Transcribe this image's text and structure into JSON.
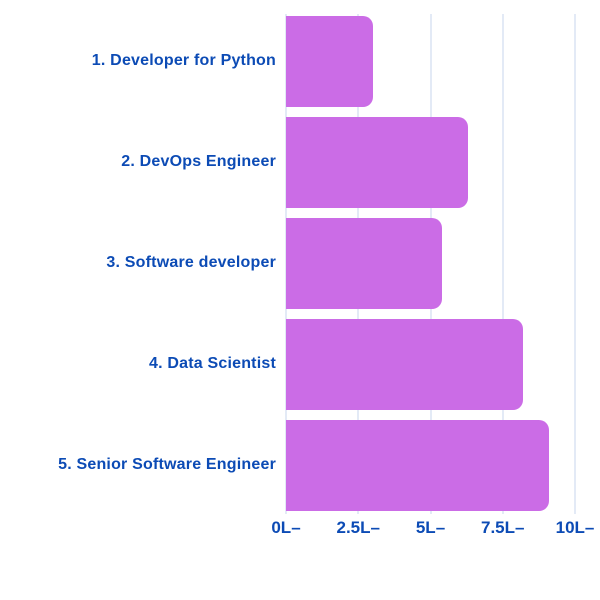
{
  "chart_data": {
    "type": "bar",
    "orientation": "horizontal",
    "categories": [
      "1. Developer for Python",
      "2. DevOps Engineer",
      "3. Software developer",
      "4. Data Scientist",
      "5. Senior Software Engineer"
    ],
    "values": [
      3.0,
      6.3,
      5.4,
      8.2,
      9.1
    ],
    "value_suffix": "L",
    "x_ticks": [
      {
        "label": "0L–",
        "value": 0
      },
      {
        "label": "2.5L–",
        "value": 2.5
      },
      {
        "label": "5L–",
        "value": 5
      },
      {
        "label": "7.5L–",
        "value": 7.5
      },
      {
        "label": "10L–",
        "value": 10
      }
    ],
    "xlim": [
      0,
      10
    ],
    "grid": true,
    "legend": false,
    "colors": {
      "bar": "#cb6ce6",
      "label": "#0c4bb5",
      "gridline": "#e3eaf6",
      "background": "#ffffff"
    }
  }
}
